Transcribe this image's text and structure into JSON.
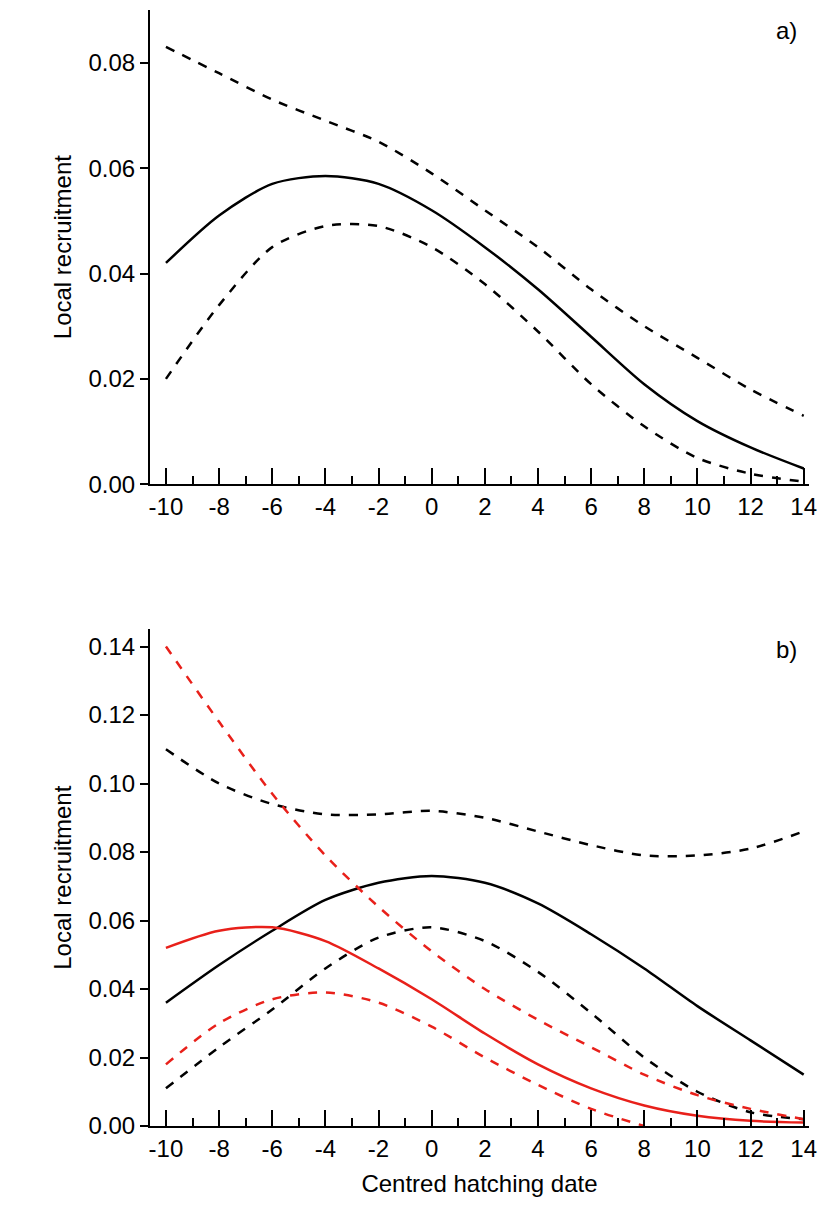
{
  "chart_data": [
    {
      "type": "line",
      "label": "a)",
      "ylabel": "Local recruitment",
      "x": [
        -10,
        -8,
        -6,
        -4,
        -2,
        0,
        2,
        4,
        6,
        8,
        10,
        12,
        14
      ],
      "xlim": [
        -10.6,
        14.2
      ],
      "xticks": [
        -10,
        -8,
        -6,
        -4,
        -2,
        0,
        2,
        4,
        6,
        8,
        10,
        12,
        14
      ],
      "ylim": [
        0,
        0.09
      ],
      "yticks": [
        {
          "value": 0,
          "label": "0.00"
        },
        {
          "value": 0.02,
          "label": "0.02"
        },
        {
          "value": 0.04,
          "label": "0.04"
        },
        {
          "value": 0.06,
          "label": "0.06"
        },
        {
          "value": 0.08,
          "label": "0.08"
        }
      ],
      "grid": false,
      "series": [
        {
          "color": "#000000",
          "line_style": "solid",
          "values": [
            0.042,
            0.051,
            0.057,
            0.0585,
            0.057,
            0.052,
            0.045,
            0.037,
            0.028,
            0.019,
            0.012,
            0.007,
            0.003
          ]
        },
        {
          "color": "#000000",
          "line_style": "dash",
          "values": [
            0.083,
            0.078,
            0.073,
            0.069,
            0.065,
            0.059,
            0.052,
            0.045,
            0.037,
            0.03,
            0.024,
            0.018,
            0.013
          ]
        },
        {
          "color": "#000000",
          "line_style": "dash",
          "values": [
            0.02,
            0.034,
            0.045,
            0.049,
            0.049,
            0.045,
            0.038,
            0.029,
            0.019,
            0.011,
            0.005,
            0.002,
            0.0005
          ]
        }
      ]
    },
    {
      "type": "line",
      "label": "b)",
      "ylabel": "Local recruitment",
      "xlabel": "Centred hatching date",
      "x": [
        -10,
        -8,
        -6,
        -4,
        -2,
        0,
        2,
        4,
        6,
        8,
        10,
        12,
        14
      ],
      "xlim": [
        -10.6,
        14.2
      ],
      "xticks": [
        -10,
        -8,
        -6,
        -4,
        -2,
        0,
        2,
        4,
        6,
        8,
        10,
        12,
        14
      ],
      "ylim": [
        0,
        0.145
      ],
      "yticks": [
        {
          "value": 0,
          "label": "0.00"
        },
        {
          "value": 0.02,
          "label": "0.02"
        },
        {
          "value": 0.04,
          "label": "0.04"
        },
        {
          "value": 0.06,
          "label": "0.06"
        },
        {
          "value": 0.08,
          "label": "0.08"
        },
        {
          "value": 0.1,
          "label": "0.10"
        },
        {
          "value": 0.12,
          "label": "0.12"
        },
        {
          "value": 0.14,
          "label": "0.14"
        }
      ],
      "grid": false,
      "series": [
        {
          "color": "#000000",
          "line_style": "solid",
          "values": [
            0.036,
            0.047,
            0.057,
            0.066,
            0.071,
            0.073,
            0.071,
            0.065,
            0.056,
            0.046,
            0.035,
            0.025,
            0.015
          ]
        },
        {
          "color": "#000000",
          "line_style": "dash",
          "values": [
            0.11,
            0.1,
            0.094,
            0.091,
            0.091,
            0.092,
            0.09,
            0.086,
            0.082,
            0.079,
            0.079,
            0.081,
            0.086
          ]
        },
        {
          "color": "#000000",
          "line_style": "dash",
          "values": [
            0.011,
            0.023,
            0.034,
            0.046,
            0.055,
            0.058,
            0.054,
            0.045,
            0.033,
            0.02,
            0.01,
            0.004,
            0.002
          ]
        },
        {
          "color": "#e8201a",
          "line_style": "solid",
          "values": [
            0.052,
            0.057,
            0.058,
            0.054,
            0.046,
            0.037,
            0.027,
            0.018,
            0.011,
            0.006,
            0.003,
            0.0015,
            0.001
          ]
        },
        {
          "color": "#e8201a",
          "line_style": "dash",
          "values": [
            0.14,
            0.118,
            0.097,
            0.079,
            0.064,
            0.051,
            0.04,
            0.031,
            0.023,
            0.015,
            0.009,
            0.005,
            0.002
          ]
        },
        {
          "color": "#e8201a",
          "line_style": "dash",
          "values": [
            0.018,
            0.03,
            0.037,
            0.039,
            0.036,
            0.029,
            0.02,
            0.012,
            0.005,
            0.0,
            null,
            null,
            null
          ]
        }
      ]
    }
  ]
}
